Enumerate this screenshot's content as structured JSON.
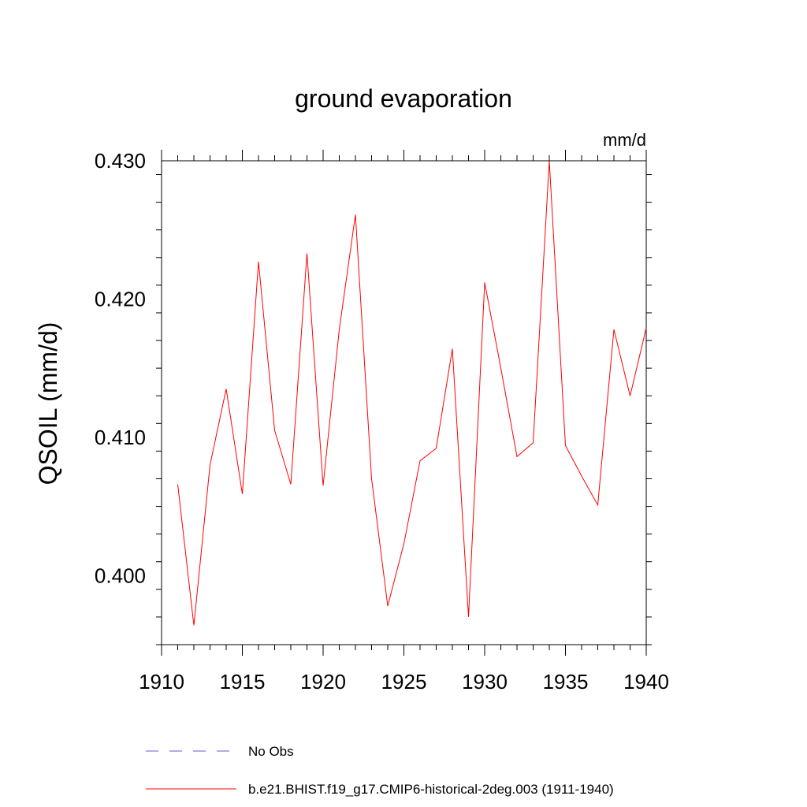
{
  "chart_data": {
    "type": "line",
    "title": "ground evaporation",
    "units_label": "mm/d",
    "ylabel": "QSOIL  (mm/d)",
    "xlabel": "",
    "xlim": [
      1910,
      1940
    ],
    "ylim": [
      0.395,
      0.43
    ],
    "x_major_ticks": [
      1910,
      1915,
      1920,
      1925,
      1930,
      1935,
      1940
    ],
    "x_tick_labels": [
      "1910",
      "1915",
      "1920",
      "1925",
      "1930",
      "1935",
      "1940"
    ],
    "y_major_ticks": [
      0.4,
      0.41,
      0.42,
      0.43
    ],
    "y_tick_labels": [
      "0.400",
      "0.410",
      "0.420",
      "0.430"
    ],
    "y_minor_step": 0.002,
    "grid": false,
    "legend_position": "bottom",
    "series": [
      {
        "name": "b.e21.BHIST.f19_g17.CMIP6-historical-2deg.003 (1911-1940)",
        "color": "#ff0000",
        "style": "solid",
        "x": [
          1911,
          1912,
          1913,
          1914,
          1915,
          1916,
          1917,
          1918,
          1919,
          1920,
          1921,
          1922,
          1923,
          1924,
          1925,
          1926,
          1927,
          1928,
          1929,
          1930,
          1931,
          1932,
          1933,
          1934,
          1935,
          1936,
          1937,
          1938,
          1939,
          1940
        ],
        "values": [
          0.4066,
          0.3964,
          0.408,
          0.4135,
          0.4059,
          0.4227,
          0.4105,
          0.4066,
          0.4233,
          0.4065,
          0.4178,
          0.4261,
          0.407,
          0.3978,
          0.4023,
          0.4083,
          0.4092,
          0.4164,
          0.397,
          0.4212,
          0.415,
          0.4086,
          0.4096,
          0.43,
          0.4094,
          0.4072,
          0.4051,
          0.4178,
          0.413,
          0.4179
        ]
      }
    ],
    "legend": [
      {
        "label": "No Obs",
        "color": "#6a5acd",
        "style": "dashed"
      },
      {
        "label": "b.e21.BHIST.f19_g17.CMIP6-historical-2deg.003 (1911-1940)",
        "color": "#ff0000",
        "style": "solid"
      }
    ]
  }
}
